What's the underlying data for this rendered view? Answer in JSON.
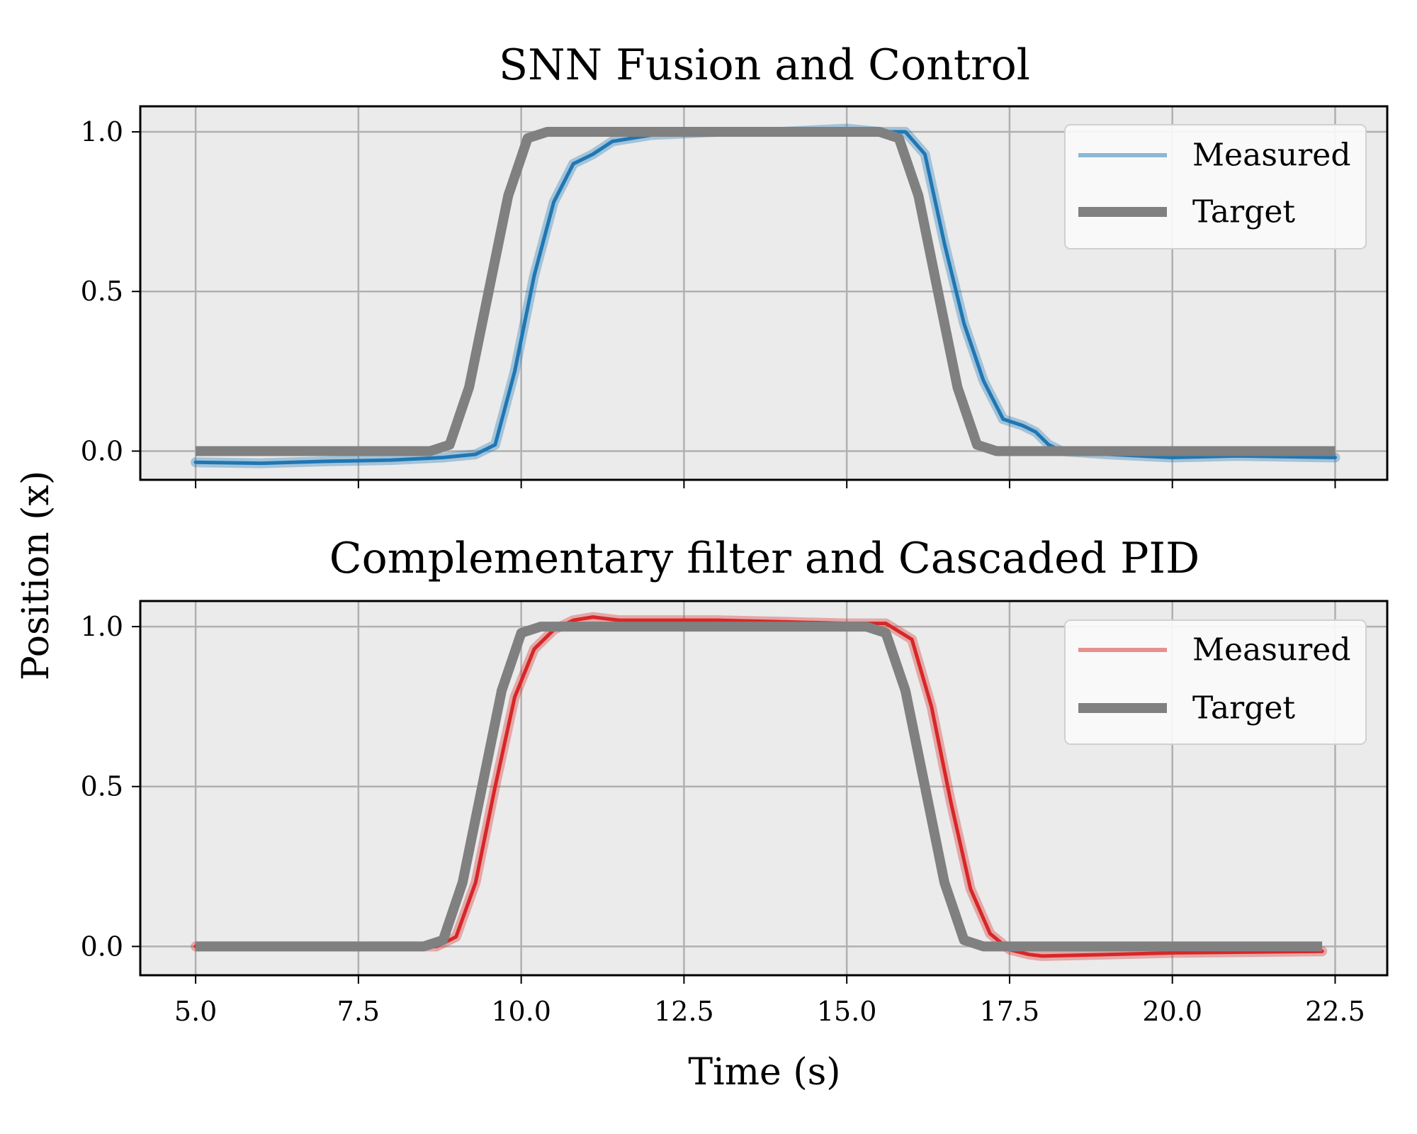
{
  "chart_data": [
    {
      "type": "line",
      "title": "SNN Fusion and Control",
      "xlabel": "",
      "ylabel": "Position (x)",
      "xlim": [
        4.15,
        23.3
      ],
      "ylim": [
        -0.09,
        1.08
      ],
      "xticks": [
        5.0,
        7.5,
        10.0,
        12.5,
        15.0,
        17.5,
        20.0,
        22.5
      ],
      "xtick_labels": [],
      "yticks": [
        0.0,
        0.5,
        1.0
      ],
      "ytick_labels": [
        "0.0",
        "0.5",
        "1.0"
      ],
      "grid": true,
      "legend": "top-right",
      "series": [
        {
          "name": "Measured",
          "color": "#1f77b4",
          "x": [
            5.0,
            6.0,
            7.0,
            8.0,
            8.8,
            9.3,
            9.6,
            9.9,
            10.2,
            10.5,
            10.8,
            11.1,
            11.4,
            12.0,
            13.0,
            14.0,
            15.0,
            15.5,
            15.9,
            16.2,
            16.5,
            16.8,
            17.1,
            17.4,
            17.7,
            17.9,
            18.1,
            18.3,
            19.0,
            20.0,
            21.0,
            22.5
          ],
          "y": [
            -0.035,
            -0.038,
            -0.032,
            -0.028,
            -0.02,
            -0.01,
            0.02,
            0.25,
            0.55,
            0.78,
            0.9,
            0.93,
            0.97,
            0.99,
            1.0,
            1.0,
            1.01,
            1.0,
            1.0,
            0.93,
            0.65,
            0.4,
            0.22,
            0.1,
            0.08,
            0.06,
            0.02,
            0.0,
            -0.01,
            -0.02,
            -0.015,
            -0.02
          ]
        },
        {
          "name": "Target",
          "color": "#808080",
          "x": [
            5.0,
            8.6,
            8.9,
            9.2,
            9.5,
            9.8,
            10.1,
            10.4,
            15.5,
            15.8,
            16.1,
            16.4,
            16.7,
            17.0,
            17.3,
            22.5
          ],
          "y": [
            0.0,
            0.0,
            0.02,
            0.2,
            0.5,
            0.8,
            0.98,
            1.0,
            1.0,
            0.98,
            0.8,
            0.5,
            0.2,
            0.02,
            0.0,
            0.0
          ]
        }
      ]
    },
    {
      "type": "line",
      "title": "Complementary filter and Cascaded PID",
      "xlabel": "Time (s)",
      "ylabel": "Position (x)",
      "xlim": [
        4.15,
        23.3
      ],
      "ylim": [
        -0.09,
        1.08
      ],
      "xticks": [
        5.0,
        7.5,
        10.0,
        12.5,
        15.0,
        17.5,
        20.0,
        22.5
      ],
      "xtick_labels": [
        "5.0",
        "7.5",
        "10.0",
        "12.5",
        "15.0",
        "17.5",
        "20.0",
        "22.5"
      ],
      "yticks": [
        0.0,
        0.5,
        1.0
      ],
      "ytick_labels": [
        "0.0",
        "0.5",
        "1.0"
      ],
      "grid": true,
      "legend": "top-right",
      "series": [
        {
          "name": "Measured",
          "color": "#d62728",
          "x": [
            5.0,
            8.0,
            8.7,
            9.0,
            9.3,
            9.6,
            9.9,
            10.2,
            10.5,
            10.8,
            11.1,
            11.5,
            12.0,
            13.0,
            14.0,
            15.0,
            15.6,
            16.0,
            16.3,
            16.6,
            16.9,
            17.2,
            17.5,
            17.8,
            18.0,
            19.0,
            20.0,
            21.0,
            22.3
          ],
          "y": [
            0.0,
            0.0,
            0.0,
            0.03,
            0.2,
            0.5,
            0.78,
            0.93,
            0.99,
            1.02,
            1.03,
            1.02,
            1.02,
            1.02,
            1.015,
            1.01,
            1.01,
            0.96,
            0.75,
            0.45,
            0.18,
            0.04,
            -0.01,
            -0.025,
            -0.03,
            -0.025,
            -0.02,
            -0.018,
            -0.015
          ]
        },
        {
          "name": "Target",
          "color": "#808080",
          "x": [
            5.0,
            8.5,
            8.8,
            9.1,
            9.4,
            9.7,
            10.0,
            10.3,
            15.3,
            15.6,
            15.9,
            16.2,
            16.5,
            16.8,
            17.1,
            22.3
          ],
          "y": [
            0.0,
            0.0,
            0.02,
            0.2,
            0.5,
            0.8,
            0.98,
            1.0,
            1.0,
            0.98,
            0.8,
            0.5,
            0.2,
            0.02,
            0.0,
            0.0
          ]
        }
      ]
    }
  ]
}
